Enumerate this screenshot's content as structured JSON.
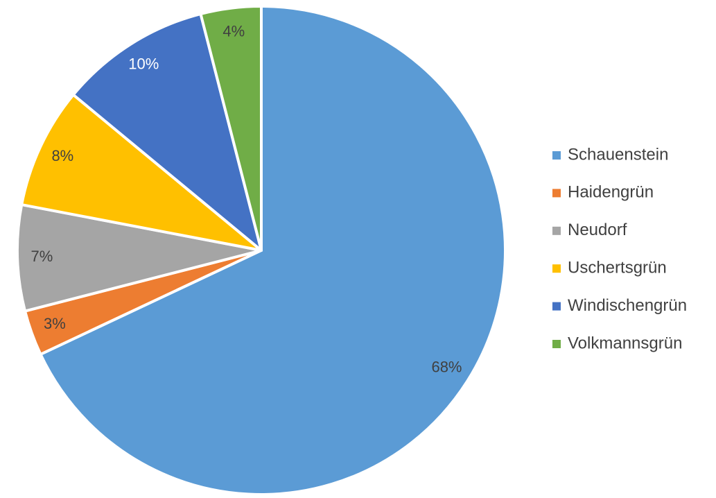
{
  "chart_data": {
    "type": "pie",
    "categories": [
      "Schauenstein",
      "Haidengrün",
      "Neudorf",
      "Uschertsgrün",
      "Windischengrün",
      "Volkmannsgrün"
    ],
    "values": [
      68,
      3,
      7,
      8,
      10,
      4
    ],
    "value_labels": [
      "68%",
      "3%",
      "7%",
      "8%",
      "10%",
      "4%"
    ],
    "colors": [
      "#5b9bd5",
      "#ed7d31",
      "#a5a5a5",
      "#ffc000",
      "#4472c4",
      "#70ad47"
    ],
    "label_colors": [
      "#404040",
      "#404040",
      "#404040",
      "#404040",
      "#ffffff",
      "#404040"
    ],
    "legend": "right"
  }
}
